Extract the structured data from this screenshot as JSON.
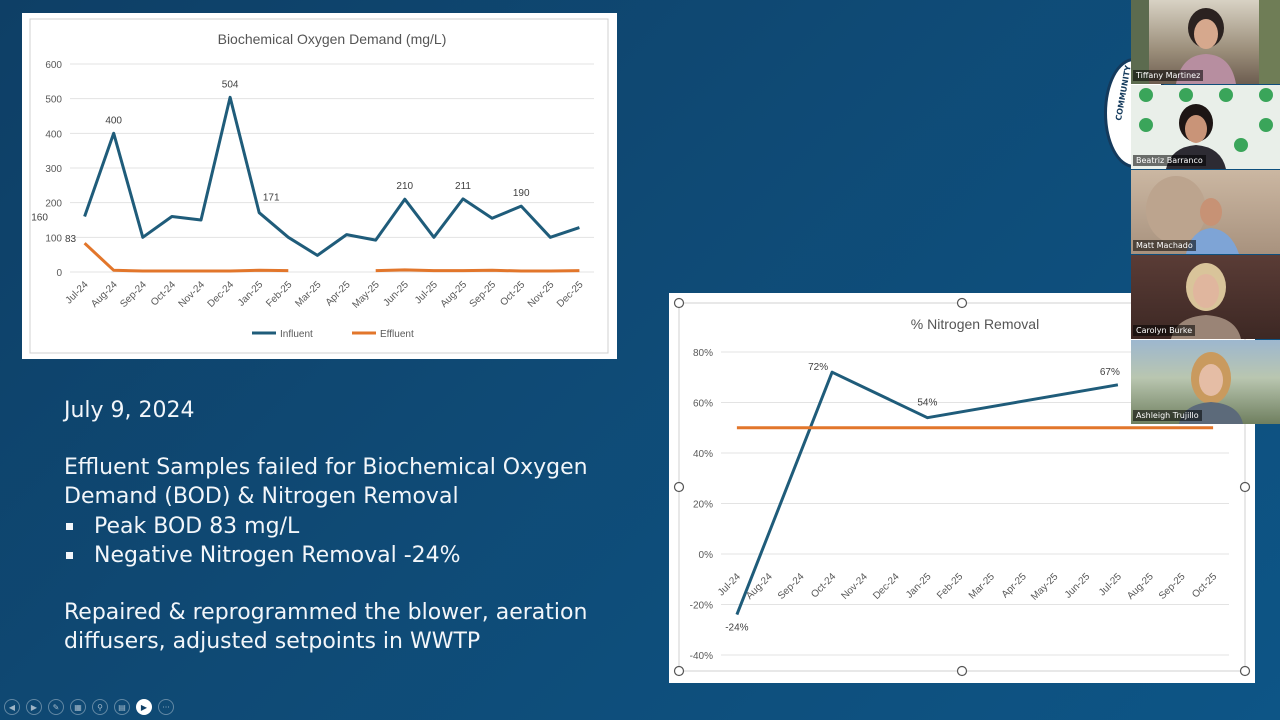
{
  "slide": {
    "date": "July 9, 2024",
    "failed_text": "Effluent Samples failed for Biochemical Oxygen Demand (BOD) & Nitrogen Removal",
    "bullets": [
      "Peak BOD 83 mg/L",
      "Negative Nitrogen Removal -24%"
    ],
    "repair_text": "Repaired & reprogrammed the blower, aeration diffusers, adjusted setpoints in WWTP"
  },
  "participants": [
    {
      "name": "Tiffany Martinez"
    },
    {
      "name": "Beatriz Barranco"
    },
    {
      "name": "Matt Machado"
    },
    {
      "name": "Carolyn Burke"
    },
    {
      "name": "Ashleigh Trujillo"
    }
  ],
  "logo_text": "COMMUNITY",
  "toolbar": {
    "icons": [
      "prev-icon",
      "next-icon",
      "pen-icon",
      "slides-icon",
      "zoom-icon",
      "subtitles-icon",
      "camera-icon",
      "more-icon"
    ],
    "more_label": "···"
  },
  "colors": {
    "influent": "#1f5c7a",
    "effluent": "#e2762b",
    "nitrogen": "#1f5c7a",
    "target": "#e2762b"
  },
  "chart_data": [
    {
      "type": "line",
      "title": "Biochemical Oxygen Demand (mg/L)",
      "categories": [
        "Jul-24",
        "Aug-24",
        "Sep-24",
        "Oct-24",
        "Nov-24",
        "Dec-24",
        "Jan-25",
        "Feb-25",
        "Mar-25",
        "Apr-25",
        "May-25",
        "Jun-25",
        "Jul-25",
        "Aug-25",
        "Sep-25",
        "Oct-25",
        "Nov-25",
        "Dec-25"
      ],
      "ylim": [
        0,
        600
      ],
      "yticks": [
        "0",
        "100",
        "200",
        "300",
        "400",
        "500",
        "600"
      ],
      "series": [
        {
          "name": "Influent",
          "values": [
            160,
            400,
            100,
            160,
            150,
            504,
            171,
            100,
            48,
            108,
            92,
            210,
            100,
            211,
            155,
            190,
            100,
            128
          ],
          "labels": [
            "160",
            "400",
            "",
            "",
            "",
            "504",
            "171",
            "",
            "",
            "",
            "",
            "210",
            "",
            "211",
            "",
            "190",
            "",
            ""
          ]
        },
        {
          "name": "Effluent",
          "values": [
            83,
            5,
            3,
            3,
            3,
            3,
            5,
            4,
            null,
            null,
            4,
            6,
            4,
            4,
            5,
            3,
            3,
            4
          ],
          "labels": [
            "83",
            "",
            "",
            "",
            "",
            "",
            "",
            "",
            "",
            "",
            "",
            "",
            "",
            "",
            "",
            "",
            "",
            ""
          ]
        }
      ],
      "legend": "bottom",
      "grid": true
    },
    {
      "type": "line",
      "title": "% Nitrogen Removal",
      "categories": [
        "Jul-24",
        "Aug-24",
        "Sep-24",
        "Oct-24",
        "Nov-24",
        "Dec-24",
        "Jan-25",
        "Feb-25",
        "Mar-25",
        "Apr-25",
        "May-25",
        "Jun-25",
        "Jul-25",
        "Aug-25",
        "Sep-25",
        "Oct-25"
      ],
      "ylim": [
        -40,
        80
      ],
      "yticks": [
        "-40%",
        "-20%",
        "0%",
        "20%",
        "40%",
        "60%",
        "80%"
      ],
      "series": [
        {
          "name": "",
          "values": [
            -24,
            null,
            null,
            72,
            null,
            null,
            54,
            null,
            null,
            null,
            null,
            null,
            67,
            null,
            null,
            null
          ],
          "labels": [
            "-24%",
            "",
            "",
            "72%",
            "",
            "",
            "54%",
            "",
            "",
            "",
            "",
            "",
            "67%",
            "",
            "",
            ""
          ]
        },
        {
          "name": "",
          "values": [
            50,
            50,
            50,
            50,
            50,
            50,
            50,
            50,
            50,
            50,
            50,
            50,
            50,
            50,
            50,
            50
          ],
          "labels": []
        }
      ],
      "grid": true
    }
  ]
}
